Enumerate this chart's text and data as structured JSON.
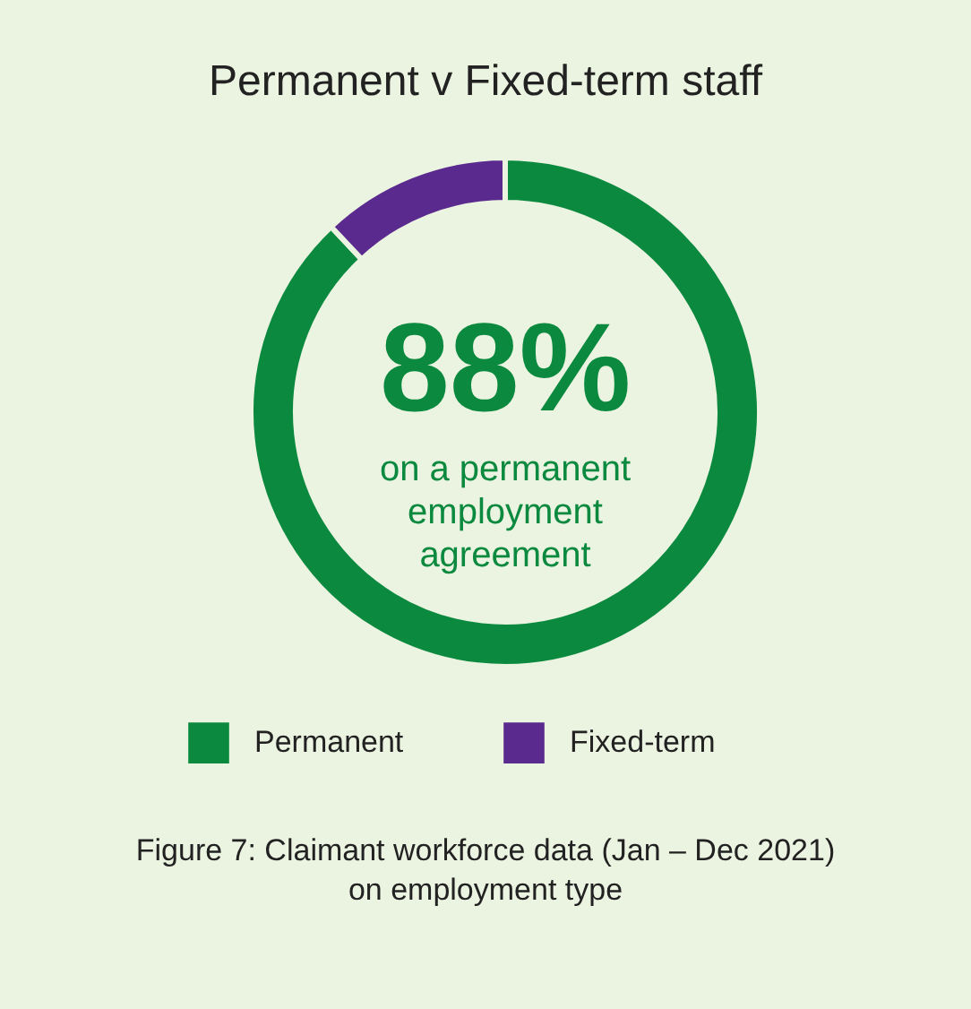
{
  "chart_data": {
    "type": "donut",
    "title": "Permanent v Fixed-term staff",
    "categories": [
      "Permanent",
      "Fixed-term"
    ],
    "values": [
      88,
      12
    ],
    "colors": [
      "#0b8a3f",
      "#5a2a8e"
    ],
    "legend": "bottom",
    "annotations": [
      "88%",
      "on a permanent employment agreement",
      "Figure 7: Claimant workforce data (Jan – Dec 2021) on employment type"
    ]
  }
}
